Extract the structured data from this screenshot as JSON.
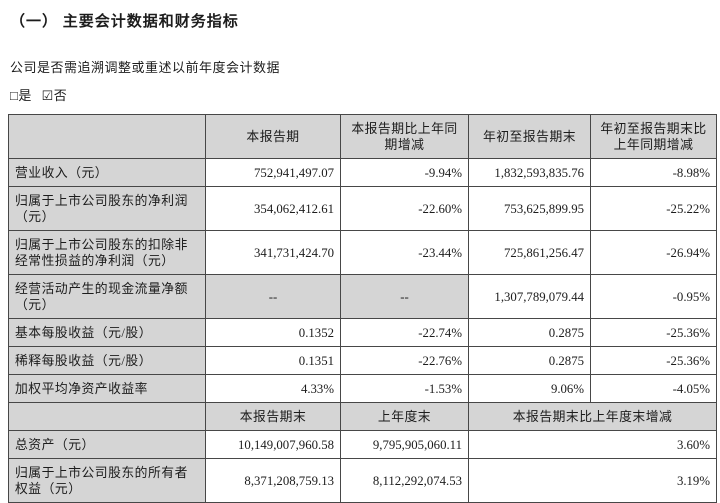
{
  "page": {
    "title": "（一） 主要会计数据和财务指标",
    "question": "公司是否需追溯调整或重述以前年度会计数据",
    "option_yes": "□是",
    "option_no": "☑否"
  },
  "table": {
    "header1": [
      "本报告期",
      "本报告期比上年同",
      "期增减",
      "本报告期比上年同期增减",
      "年初至报告期末",
      "年初至报告期末比",
      "上年同期增减",
      "年初至报告期末比上年同期增减"
    ],
    "rows1": [
      {
        "label": "营业收入（元）",
        "cells": [
          "752,941,497.07",
          "-9.94%",
          "1,832,593,835.76",
          "-8.98%"
        ]
      },
      {
        "label": "归属于上市公司股东的净利润（元）",
        "cells": [
          "354,062,412.61",
          "-22.60%",
          "753,625,899.95",
          "-25.22%"
        ]
      },
      {
        "label": "归属于上市公司股东的扣除非经常性损益的净利润（元）",
        "cells": [
          "341,731,424.70",
          "-23.44%",
          "725,861,256.47",
          "-26.94%"
        ]
      },
      {
        "label": "经营活动产生的现金流量净额（元）",
        "cells": [
          "--",
          "--",
          "1,307,789,079.44",
          "-0.95%"
        ]
      },
      {
        "label": "基本每股收益（元/股）",
        "cells": [
          "0.1352",
          "-22.74%",
          "0.2875",
          "-25.36%"
        ]
      },
      {
        "label": "稀释每股收益（元/股）",
        "cells": [
          "0.1351",
          "-22.76%",
          "0.2875",
          "-25.36%"
        ]
      },
      {
        "label": "加权平均净资产收益率",
        "cells": [
          "4.33%",
          "-1.53%",
          "9.06%",
          "-4.05%"
        ]
      }
    ],
    "header2": [
      "本报告期末",
      "上年度末",
      "本报告期末比上年度末增减"
    ],
    "rows2": [
      {
        "label": "总资产（元）",
        "cells": [
          "10,149,007,960.58",
          "9,795,905,060.11",
          "3.60%"
        ]
      },
      {
        "label": "归属于上市公司股东的所有者权益（元）",
        "cells": [
          "8,371,208,759.13",
          "8,112,292,074.53",
          "3.19%"
        ]
      }
    ]
  }
}
